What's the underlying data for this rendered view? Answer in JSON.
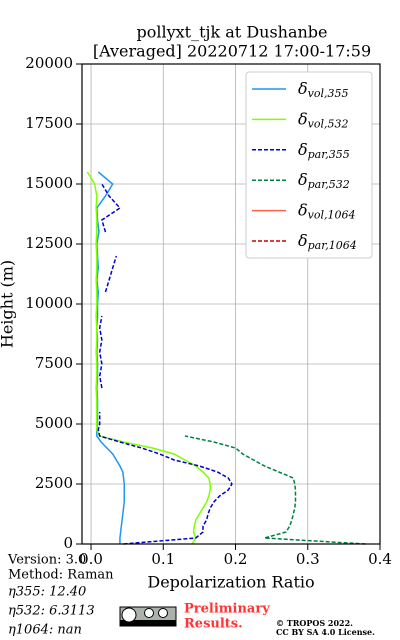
{
  "chart_data": {
    "type": "line",
    "title": [
      "pollyxt_tjk at Dushanbe",
      "[Averaged] 20220712 17:00-17:59"
    ],
    "xlabel": "Depolarization Ratio",
    "ylabel": "Height (m)",
    "xlim": [
      -0.0125,
      0.4
    ],
    "ylim": [
      0,
      20000
    ],
    "xticks": [
      {
        "value": 0,
        "label": "0.0"
      },
      {
        "value": 0.1,
        "label": "0.1"
      },
      {
        "value": 0.2,
        "label": "0.2"
      },
      {
        "value": 0.3,
        "label": "0.3"
      },
      {
        "value": 0.4,
        "label": "0.4"
      }
    ],
    "yticks": [
      0,
      2500,
      5000,
      7500,
      10000,
      12500,
      15000,
      17500,
      20000
    ],
    "grid": true,
    "legend": "upper right",
    "x": [
      0,
      250,
      500,
      750,
      1000,
      1250,
      1500,
      1750,
      2000,
      2250,
      2500,
      2750,
      3000,
      3250,
      3500,
      3750,
      4000,
      4250,
      4500,
      4750,
      5000,
      5500,
      6000,
      6500,
      7000,
      7500,
      8000,
      8500,
      9000,
      9500,
      10000,
      10500,
      11000,
      11500,
      12000,
      12500,
      13000,
      13500,
      14000,
      14500,
      15000,
      15500
    ],
    "series": [
      {
        "name": "δvol,355",
        "color": "#2196f3",
        "linestyle": "solid",
        "values": [
          0.04,
          0.04,
          0.041,
          0.042,
          0.043,
          0.044,
          0.045,
          0.046,
          0.046,
          0.046,
          0.046,
          0.045,
          0.044,
          0.04,
          0.035,
          0.03,
          0.022,
          0.014,
          0.008,
          0.008,
          0.009,
          0.009,
          0.009,
          0.008,
          0.009,
          0.009,
          0.008,
          0.009,
          0.008,
          0.009,
          0.009,
          0.01,
          0.008,
          0.01,
          0.009,
          0.008,
          0.011,
          0.009,
          0.008,
          0.02,
          0.03,
          0.01
        ]
      },
      {
        "name": "δvol,532",
        "color": "#80ff00",
        "linestyle": "solid",
        "values": [
          0.14,
          0.145,
          0.142,
          0.143,
          0.145,
          0.15,
          0.155,
          0.16,
          0.163,
          0.165,
          0.165,
          0.163,
          0.155,
          0.145,
          0.13,
          0.115,
          0.085,
          0.045,
          0.012,
          0.008,
          0.008,
          0.008,
          0.008,
          0.007,
          0.008,
          0.008,
          0.007,
          0.008,
          0.008,
          0.007,
          0.008,
          0.008,
          0.007,
          0.008,
          0.008,
          0.007,
          0.008,
          0.008,
          0.007,
          0.008,
          0.005,
          -0.005
        ]
      },
      {
        "name": "δpar,355",
        "color": "#0000cc",
        "linestyle": "dashed",
        "values": [
          0.045,
          0.145,
          0.155,
          0.155,
          0.16,
          0.162,
          0.165,
          0.17,
          0.178,
          0.19,
          0.195,
          0.19,
          0.175,
          0.15,
          0.115,
          0.095,
          0.07,
          0.04,
          0.012,
          0.01,
          0.012,
          0.012,
          null,
          0.015,
          0.012,
          0.015,
          0.012,
          0.015,
          0.012,
          0.015,
          null,
          0.02,
          0.025,
          0.03,
          0.035,
          null,
          0.02,
          0.015,
          0.04,
          0.025,
          0.015,
          null
        ]
      },
      {
        "name": "δpar,532",
        "color": "#008040",
        "linestyle": "dashed",
        "values": [
          0.38,
          0.24,
          0.27,
          0.275,
          0.278,
          0.28,
          0.282,
          0.283,
          0.283,
          0.283,
          0.282,
          0.28,
          0.26,
          0.24,
          0.225,
          0.21,
          0.2,
          0.17,
          0.13,
          null,
          null,
          null,
          null,
          null,
          null,
          null,
          null,
          null,
          null,
          null,
          null,
          null,
          null,
          null,
          null,
          null,
          null,
          null,
          null,
          null,
          null,
          null
        ]
      },
      {
        "name": "δvol,1064",
        "color": "#ff6347",
        "linestyle": "solid",
        "values": [
          null,
          null,
          null,
          null,
          null,
          null,
          null,
          null,
          null,
          null,
          null,
          null,
          null,
          null,
          null,
          null,
          null,
          null,
          null,
          null,
          null,
          null,
          null,
          null,
          null,
          null,
          null,
          null,
          null,
          null,
          null,
          null,
          null,
          null,
          null,
          null,
          null,
          null,
          null,
          null,
          null,
          null
        ]
      },
      {
        "name": "δpar,1064",
        "color": "#cc0000",
        "linestyle": "dashed",
        "values": [
          null,
          null,
          null,
          null,
          null,
          null,
          null,
          null,
          null,
          null,
          null,
          null,
          null,
          null,
          null,
          null,
          null,
          null,
          null,
          null,
          null,
          null,
          null,
          null,
          null,
          null,
          null,
          null,
          null,
          null,
          null,
          null,
          null,
          null,
          null,
          null,
          null,
          null,
          null,
          null,
          null,
          null
        ]
      }
    ],
    "info": [
      "Version: 3.0",
      "Method: Raman",
      "η355:  12.40",
      "η532: 6.3113",
      "η1064:    nan"
    ],
    "stamp": [
      "Preliminary",
      "Results."
    ],
    "license": [
      "© TROPOS 2022.",
      "CC BY SA 4.0 License."
    ]
  }
}
